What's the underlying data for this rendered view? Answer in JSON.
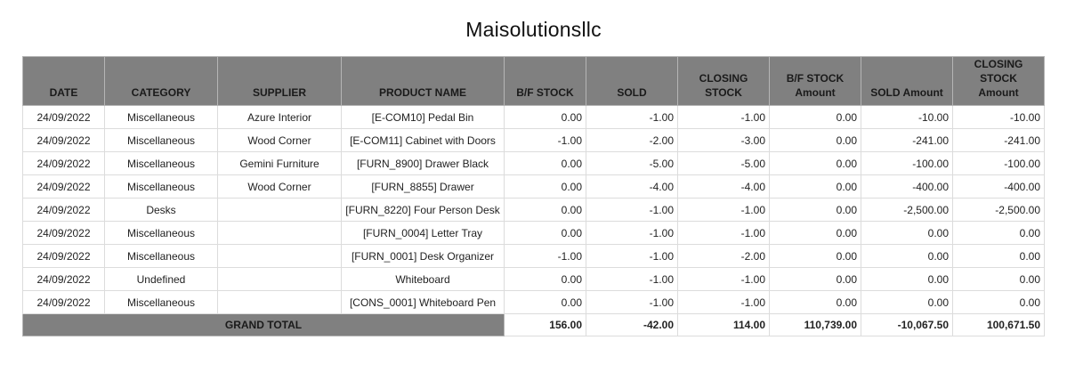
{
  "report": {
    "company": "Maisolutionsllc"
  },
  "columns": {
    "date": "DATE",
    "category": "CATEGORY",
    "supplier": "SUPPLIER",
    "product": "PRODUCT NAME",
    "bf_stock": "B/F STOCK",
    "sold": "SOLD",
    "closing_stock": "CLOSING STOCK",
    "bf_amount_1": "B/F STOCK",
    "bf_amount_2": "Amount",
    "sold_amount": "SOLD Amount",
    "closing_amount_1": "CLOSING STOCK",
    "closing_amount_2": "Amount"
  },
  "rows": [
    {
      "date": "24/09/2022",
      "category": "Miscellaneous",
      "supplier": "Azure Interior",
      "product": "[E-COM10] Pedal Bin",
      "bf_stock": "0.00",
      "sold": "-1.00",
      "closing_stock": "-1.00",
      "bf_amount": "0.00",
      "sold_amount": "-10.00",
      "closing_amount": "-10.00"
    },
    {
      "date": "24/09/2022",
      "category": "Miscellaneous",
      "supplier": "Wood Corner",
      "product": "[E-COM11] Cabinet with Doors",
      "bf_stock": "-1.00",
      "sold": "-2.00",
      "closing_stock": "-3.00",
      "bf_amount": "0.00",
      "sold_amount": "-241.00",
      "closing_amount": "-241.00"
    },
    {
      "date": "24/09/2022",
      "category": "Miscellaneous",
      "supplier": "Gemini Furniture",
      "product": "[FURN_8900] Drawer Black",
      "bf_stock": "0.00",
      "sold": "-5.00",
      "closing_stock": "-5.00",
      "bf_amount": "0.00",
      "sold_amount": "-100.00",
      "closing_amount": "-100.00"
    },
    {
      "date": "24/09/2022",
      "category": "Miscellaneous",
      "supplier": "Wood Corner",
      "product": "[FURN_8855] Drawer",
      "bf_stock": "0.00",
      "sold": "-4.00",
      "closing_stock": "-4.00",
      "bf_amount": "0.00",
      "sold_amount": "-400.00",
      "closing_amount": "-400.00"
    },
    {
      "date": "24/09/2022",
      "category": "Desks",
      "supplier": "",
      "product": "[FURN_8220] Four Person Desk",
      "bf_stock": "0.00",
      "sold": "-1.00",
      "closing_stock": "-1.00",
      "bf_amount": "0.00",
      "sold_amount": "-2,500.00",
      "closing_amount": "-2,500.00"
    },
    {
      "date": "24/09/2022",
      "category": "Miscellaneous",
      "supplier": "",
      "product": "[FURN_0004] Letter Tray",
      "bf_stock": "0.00",
      "sold": "-1.00",
      "closing_stock": "-1.00",
      "bf_amount": "0.00",
      "sold_amount": "0.00",
      "closing_amount": "0.00"
    },
    {
      "date": "24/09/2022",
      "category": "Miscellaneous",
      "supplier": "",
      "product": "[FURN_0001] Desk Organizer",
      "bf_stock": "-1.00",
      "sold": "-1.00",
      "closing_stock": "-2.00",
      "bf_amount": "0.00",
      "sold_amount": "0.00",
      "closing_amount": "0.00"
    },
    {
      "date": "24/09/2022",
      "category": "Undefined",
      "supplier": "",
      "product": "Whiteboard",
      "bf_stock": "0.00",
      "sold": "-1.00",
      "closing_stock": "-1.00",
      "bf_amount": "0.00",
      "sold_amount": "0.00",
      "closing_amount": "0.00"
    },
    {
      "date": "24/09/2022",
      "category": "Miscellaneous",
      "supplier": "",
      "product": "[CONS_0001] Whiteboard Pen",
      "bf_stock": "0.00",
      "sold": "-1.00",
      "closing_stock": "-1.00",
      "bf_amount": "0.00",
      "sold_amount": "0.00",
      "closing_amount": "0.00"
    }
  ],
  "totals": {
    "label": "GRAND TOTAL",
    "bf_stock": "156.00",
    "sold": "-42.00",
    "closing_stock": "114.00",
    "bf_amount": "110,739.00",
    "sold_amount": "-10,067.50",
    "closing_amount": "100,671.50"
  }
}
